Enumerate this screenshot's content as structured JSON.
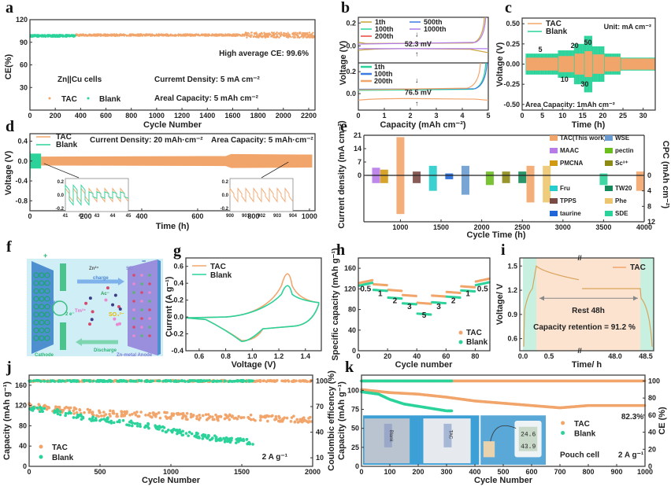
{
  "colors": {
    "tac": "#f2a56b",
    "blank": "#2bd39a",
    "frame": "#333333"
  },
  "panel_labels": [
    "a",
    "b",
    "c",
    "d",
    "e",
    "f",
    "g",
    "h",
    "i",
    "j",
    "k"
  ],
  "chart_data": [
    {
      "id": "a",
      "type": "scatter",
      "xlabel": "Cycle Number",
      "ylabel": "CE(%)",
      "xlim": [
        0,
        2250
      ],
      "ylim": [
        0,
        120
      ],
      "xticks": [
        0,
        200,
        400,
        600,
        800,
        1000,
        1200,
        1400,
        1600,
        1800,
        2000,
        2200
      ],
      "yticks": [
        30,
        60,
        90,
        120
      ],
      "annotations": [
        "High average CE: 99.6%",
        "Zn||Cu cells",
        "Curremt Density: 5 mA cm⁻²",
        "Areal Capacity: 5 mAh cm⁻²"
      ],
      "series": [
        {
          "name": "TAC",
          "x_range": [
            360,
            2250
          ],
          "mean": 99.6,
          "spread": 3
        },
        {
          "name": "Blank",
          "x_range": [
            0,
            360
          ],
          "mean": 98.5,
          "spread": 2
        }
      ]
    },
    {
      "id": "b",
      "type": "line",
      "xlabel": "Capacity (mAh cm⁻²)",
      "ylabel": "Voltage (V)",
      "xlim": [
        0,
        5
      ],
      "xticks": [
        0,
        1,
        2,
        3,
        4,
        5
      ],
      "top": {
        "yticks": [
          "0.2",
          "0.0"
        ],
        "legend": [
          "1th",
          "100th",
          "200th",
          "500th",
          "1000th"
        ],
        "legend_colors": [
          "#c9a23a",
          "#2bd39a",
          "#e8453c",
          "#3a7be0",
          "#b07be8"
        ],
        "annotation": "52.3 mV"
      },
      "bottom": {
        "yticks": [
          "0.2",
          "0.0"
        ],
        "legend": [
          "1th",
          "100th",
          "200th"
        ],
        "legend_colors": [
          "#2bd39a",
          "#3a7be0",
          "#f2a56b"
        ],
        "annotation": "76.5 mV"
      }
    },
    {
      "id": "c",
      "type": "line",
      "xlabel": "Time (h)",
      "ylabel": "Voltage (V)",
      "xlim": [
        0,
        33
      ],
      "ylim": [
        -0.55,
        0.55
      ],
      "xticks": [
        0,
        5,
        10,
        15,
        20,
        25,
        30
      ],
      "yticks": [
        "0.50",
        "0.25",
        "0.00",
        "-0.25",
        "-0.50"
      ],
      "legend": [
        "TAC",
        "Blank"
      ],
      "annotations": [
        "Unit: mA cm⁻²",
        "Area Capacity: 1mAh cm⁻²"
      ],
      "rate_labels": [
        "5",
        "10",
        "20",
        "30",
        "50"
      ],
      "segments": [
        {
          "t": [
            1,
            9
          ],
          "rate": 5,
          "tac": 0.08,
          "blank": 0.13
        },
        {
          "t": [
            9,
            13
          ],
          "rate": 10,
          "tac": 0.1,
          "blank": 0.17
        },
        {
          "t": [
            13,
            15.5
          ],
          "rate": 20,
          "tac": 0.13,
          "blank": 0.25
        },
        {
          "t": [
            15.5,
            17.5
          ],
          "rate": 50,
          "tac": 0.16,
          "blank": 0.35
        },
        {
          "t": [
            17.5,
            20.5
          ],
          "rate": 30,
          "tac": 0.12,
          "blank": 0.22
        },
        {
          "t": [
            20.5,
            24.5
          ],
          "rate": 10,
          "tac": 0.09,
          "blank": 0.13
        },
        {
          "t": [
            24.5,
            33
          ],
          "rate": 5,
          "tac": 0.07,
          "blank": 0.08
        }
      ]
    },
    {
      "id": "d",
      "type": "line",
      "xlabel": "Time (h)",
      "ylabel": "Voltage (V)",
      "xlim": [
        0,
        1020
      ],
      "ylim": [
        -1.0,
        0.55
      ],
      "xticks": [
        0,
        200,
        400,
        600,
        800,
        1000
      ],
      "yticks": [
        "0.4",
        "0.0",
        "-0.4",
        "-0.8"
      ],
      "legend": [
        "TAC",
        "Blank"
      ],
      "annotations": [
        "Current Density: 20 mAh·cm⁻²",
        "Area Capacity: 5 mAh·cm⁻²"
      ],
      "inset1": {
        "xticks": [
          "41",
          "42",
          "43",
          "44",
          "45"
        ],
        "yticks": [
          "0.2",
          "0.0",
          "-0.2"
        ]
      },
      "inset2": {
        "xticks": [
          "900",
          "901",
          "902",
          "903",
          "904"
        ],
        "yticks": [
          "0.2",
          "0.0",
          "-0.2"
        ]
      }
    },
    {
      "id": "e",
      "type": "bar",
      "xlabel": "Cycle Time (h)",
      "ylabel": "Current density (mA cm⁻²)",
      "ylabel2": "CPC (mAh cm⁻²)",
      "xlim": [
        550,
        4000
      ],
      "ylim": [
        -21,
        21
      ],
      "xticks": [
        1000,
        1500,
        2000,
        2500,
        3000,
        3500,
        4000
      ],
      "yticks": [
        "21",
        "14",
        "7",
        "0"
      ],
      "yticks2": [
        "0",
        "4",
        "8",
        "12"
      ],
      "bars": [
        {
          "name": "MAAC",
          "x": 700,
          "cd": 4,
          "cpc": 2,
          "color": "#b77be8"
        },
        {
          "name": "PMCNA",
          "x": 800,
          "cd": 3,
          "cpc": 2,
          "color": "#d19a13"
        },
        {
          "name": "TAC(This work)",
          "x": 1000,
          "cd": 20,
          "cpc": 10,
          "color": "#f2a56b"
        },
        {
          "name": "TPPS",
          "x": 1200,
          "cd": 2,
          "cpc": 2,
          "color": "#7a4a44"
        },
        {
          "name": "Fru",
          "x": 1400,
          "cd": 5,
          "cpc": 4,
          "color": "#27cccc"
        },
        {
          "name": "taurine",
          "x": 1600,
          "cd": 1,
          "cpc": 1,
          "color": "#1f66d8"
        },
        {
          "name": "WSE",
          "x": 1800,
          "cd": 5,
          "cpc": 5,
          "color": "#6a9bd0"
        },
        {
          "name": "pectin",
          "x": 2100,
          "cd": 2,
          "cpc": 2.5,
          "color": "#6cbd1e"
        },
        {
          "name": "Sc³⁺",
          "x": 2300,
          "cd": 2,
          "cpc": 2,
          "color": "#8e8a16"
        },
        {
          "name": "TW20",
          "x": 2500,
          "cd": 2,
          "cpc": 2,
          "color": "#148a5a"
        },
        {
          "name": "TAC",
          "x": 2600,
          "cd": 5,
          "cpc": 7,
          "color": "#f2a56b"
        },
        {
          "name": "Phe",
          "x": 2800,
          "cd": 5,
          "cpc": 7,
          "color": "#edc56e"
        },
        {
          "name": "SDE",
          "x": 3500,
          "cd": 1,
          "cpc": 2.5,
          "color": "#2bd39a"
        },
        {
          "name": "TAC",
          "x": 3950,
          "cd": 2,
          "cpc": 4,
          "color": "#f2a56b"
        }
      ],
      "legend": [
        "TAC(This work)",
        "WSE",
        "MAAC",
        "pectin",
        "PMCNA",
        "Sc³⁺",
        "Fru",
        "TW20",
        "TPPS",
        "Phe",
        "taurine",
        "SDE"
      ]
    },
    {
      "id": "g",
      "type": "line",
      "xlabel": "Voltage (V)",
      "ylabel": "Current (A g⁻¹)",
      "xlim": [
        0.5,
        1.52
      ],
      "ylim": [
        -0.4,
        0.7
      ],
      "xticks": [
        "0.6",
        "0.8",
        "1.0",
        "1.2",
        "1.4"
      ],
      "yticks": [
        "0.6",
        "0.4",
        "0.2",
        "0.0",
        "-0.2",
        "-0.4"
      ],
      "legend": [
        "TAC",
        "Blank"
      ],
      "series": [
        {
          "name": "TAC",
          "anodic_peak": [
            1.28,
            0.62
          ],
          "cathodic_peak": [
            0.95,
            -0.28
          ]
        },
        {
          "name": "Blank",
          "anodic_peak": [
            1.27,
            0.45
          ],
          "cathodic_peak": [
            0.9,
            -0.29
          ]
        }
      ]
    },
    {
      "id": "h",
      "type": "scatter",
      "xlabel": "Cycle number",
      "ylabel": "Specific capacity (mAh g⁻¹)",
      "xlim": [
        0,
        90
      ],
      "ylim": [
        0,
        180
      ],
      "xticks": [
        "0",
        "20",
        "40",
        "60",
        "80"
      ],
      "yticks": [
        "0",
        "40",
        "80",
        "120",
        "160"
      ],
      "rate_labels": [
        "0.5",
        "1",
        "2",
        "3",
        "5",
        "3",
        "2",
        "1",
        "0.5"
      ],
      "rates": [
        0.5,
        1,
        2,
        3,
        5,
        3,
        2,
        1,
        0.5
      ],
      "series": [
        {
          "name": "TAC",
          "values": [
            134,
            129,
            118,
            108,
            93,
            107,
            114,
            125,
            137
          ]
        },
        {
          "name": "Blank",
          "values": [
            129,
            118,
            103,
            92,
            72,
            94,
            105,
            117,
            130
          ]
        }
      ]
    },
    {
      "id": "i",
      "type": "line",
      "xlabel": "Time/ h",
      "ylabel": "Voltage/ V",
      "ylim": [
        0.45,
        1.6
      ],
      "xticks": [
        "0.0",
        "0.5",
        "48.0",
        "48.5"
      ],
      "yticks": [
        "0.6",
        "0.9",
        "1.2",
        "1.5"
      ],
      "legend": [
        "TAC"
      ],
      "annotations": [
        "Rest 48h",
        "Capacity retention = 91.2 %"
      ]
    },
    {
      "id": "j",
      "type": "scatter",
      "xlabel": "Cycle Number",
      "ylabel": "Capacity (mAh g⁻¹)",
      "ylabel2": "Coulombic efficency (%)",
      "xlim": [
        0,
        2000
      ],
      "ylim": [
        0,
        180
      ],
      "xticks": [
        0,
        500,
        1000,
        1500,
        2000
      ],
      "yticks": [
        0,
        40,
        80,
        120,
        160
      ],
      "yticks2": [
        "10",
        "40",
        "70",
        "100"
      ],
      "legend": [
        "TAC",
        "Blank"
      ],
      "annotation": "2 A g⁻¹",
      "series": [
        {
          "name": "TAC capacity",
          "x": [
            0,
            250,
            500,
            750,
            1000,
            1250,
            1500,
            1750,
            2000
          ],
          "y": [
            120,
            112,
            104,
            104,
            100,
            97,
            96,
            94,
            92
          ]
        },
        {
          "name": "Blank capacity",
          "x": [
            0,
            250,
            400,
            600,
            800,
            1000,
            1200,
            1400,
            1580
          ],
          "y": [
            116,
            105,
            95,
            90,
            82,
            70,
            60,
            52,
            48
          ]
        },
        {
          "name": "TAC CE",
          "value": 100
        },
        {
          "name": "Blank CE",
          "value": 100,
          "until": 1580
        }
      ]
    },
    {
      "id": "k",
      "type": "scatter",
      "xlabel": "Cycle Number",
      "ylabel": "Capacity (mAh g⁻¹)",
      "ylabel2": "CE (%)",
      "xlim": [
        0,
        1000
      ],
      "ylim": [
        0,
        120
      ],
      "xticks": [
        0,
        100,
        200,
        300,
        400,
        500,
        600,
        700,
        800,
        900,
        1000
      ],
      "yticks": [
        0,
        25,
        50,
        75,
        100
      ],
      "yticks2": [
        0,
        20,
        40,
        60,
        80,
        100
      ],
      "legend": [
        "TAC",
        "Blank"
      ],
      "annotations": [
        "82.3%",
        "Pouch cell",
        "2 A g⁻¹"
      ],
      "photo_labels": [
        "Blank",
        "TAC"
      ],
      "thermometer_readings": [
        "24.6",
        "43.9"
      ],
      "series": [
        {
          "name": "TAC capacity",
          "x": [
            0,
            100,
            200,
            300,
            400,
            500,
            600,
            700,
            800,
            1000
          ],
          "y": [
            101,
            97,
            95,
            91,
            86,
            83,
            80,
            77,
            80,
            80
          ]
        },
        {
          "name": "Blank capacity",
          "x": [
            0,
            60,
            100,
            150,
            200,
            250,
            300,
            320
          ],
          "y": [
            98,
            95,
            88,
            82,
            79,
            76,
            73,
            73
          ]
        }
      ]
    }
  ],
  "schematic_f": {
    "labels": {
      "cathode": "Cathode",
      "anode": "Zn-metal Anode",
      "charge": "charge",
      "discharge": "Discharge",
      "zn": "Zn²⁺",
      "sei": "SEI",
      "ac": "Ac⁻",
      "tm": "Tm³⁺",
      "so4": "SO₄²⁻",
      "e1": "2 e⁻",
      "e2": "2 e⁻",
      "plus": "+",
      "minus": "−"
    }
  }
}
